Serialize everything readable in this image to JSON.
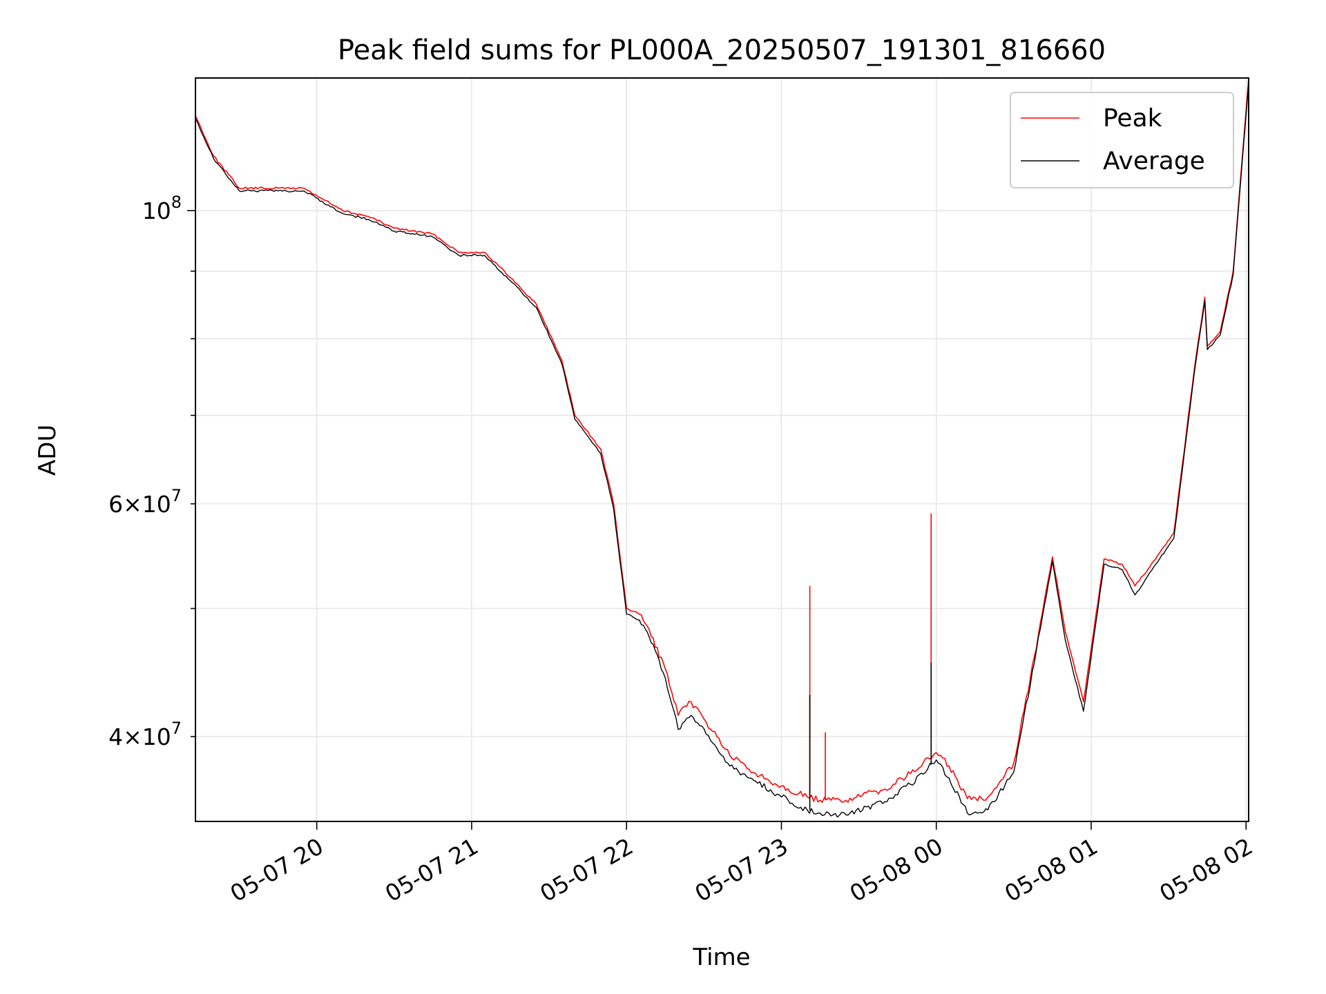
{
  "chart_data": {
    "type": "line",
    "title": "Peak field sums for PL000A_20250507_191301_816660",
    "xlabel": "Time",
    "ylabel": "ADU",
    "yscale": "log",
    "xlim": [
      "2025-05-07 19:13",
      "2025-05-08 02:01"
    ],
    "ylim": [
      34500000,
      126000000
    ],
    "grid": true,
    "legend_position": "top-right",
    "x_ticks": [
      "05-07 20",
      "05-07 21",
      "05-07 22",
      "05-07 23",
      "05-08 00",
      "05-08 01",
      "05-08 02"
    ],
    "y_major_ticks": [
      {
        "value": 100000000,
        "label": "10^8",
        "base": "10",
        "exp": "8"
      }
    ],
    "y_minor_ticks": [
      {
        "value": 40000000,
        "label": "4×10^7",
        "mantissa": "4",
        "base": "10",
        "exp": "7"
      },
      {
        "value": 60000000,
        "label": "6×10^7",
        "mantissa": "6",
        "base": "10",
        "exp": "7"
      }
    ],
    "y_unlabeled_ticks": [
      50000000,
      70000000,
      80000000,
      90000000
    ],
    "series": [
      {
        "name": "Peak",
        "color": "#ff0000",
        "x": [
          "2025-05-07 19:13",
          "2025-05-07 19:20",
          "2025-05-07 19:30",
          "2025-05-07 19:45",
          "2025-05-07 19:55",
          "2025-05-07 20:10",
          "2025-05-07 20:20",
          "2025-05-07 20:30",
          "2025-05-07 20:45",
          "2025-05-07 20:55",
          "2025-05-07 21:05",
          "2025-05-07 21:15",
          "2025-05-07 21:25",
          "2025-05-07 21:35",
          "2025-05-07 21:40",
          "2025-05-07 21:50",
          "2025-05-07 21:55",
          "2025-05-07 22:00",
          "2025-05-07 22:05",
          "2025-05-07 22:08",
          "2025-05-07 22:15",
          "2025-05-07 22:20",
          "2025-05-07 22:25",
          "2025-05-07 22:35",
          "2025-05-07 22:40",
          "2025-05-07 22:50",
          "2025-05-07 23:00",
          "2025-05-07 23:10",
          "2025-05-07 23:15",
          "2025-05-07 23:25",
          "2025-05-07 23:40",
          "2025-05-07 23:50",
          "2025-05-08 00:00",
          "2025-05-08 00:05",
          "2025-05-08 00:12",
          "2025-05-08 00:20",
          "2025-05-08 00:30",
          "2025-05-08 00:38",
          "2025-05-08 00:45",
          "2025-05-08 00:50",
          "2025-05-08 00:57",
          "2025-05-08 01:05",
          "2025-05-08 01:12",
          "2025-05-08 01:17",
          "2025-05-08 01:25",
          "2025-05-08 01:32",
          "2025-05-08 01:40",
          "2025-05-08 01:44",
          "2025-05-08 01:45",
          "2025-05-08 01:50",
          "2025-05-08 01:55",
          "2025-05-08 02:01"
        ],
        "values": [
          118000000,
          110000000,
          104000000,
          104000000,
          104000000,
          100000000,
          99000000,
          97000000,
          96000000,
          93000000,
          93000000,
          89000000,
          85000000,
          77000000,
          70000000,
          66000000,
          60000000,
          50000000,
          49500000,
          48500000,
          45000000,
          41500000,
          42500000,
          40000000,
          38700000,
          37500000,
          36700000,
          36000000,
          35800000,
          35800000,
          36500000,
          37500000,
          38900000,
          38000000,
          35900000,
          36000000,
          38200000,
          46000000,
          54700000,
          48000000,
          42500000,
          54500000,
          54000000,
          52000000,
          54500000,
          57000000,
          76000000,
          86000000,
          79000000,
          81000000,
          90000000,
          126000000
        ]
      },
      {
        "name": "Average",
        "color": "#000000",
        "x": [
          "2025-05-07 19:13",
          "2025-05-07 19:20",
          "2025-05-07 19:30",
          "2025-05-07 19:45",
          "2025-05-07 19:55",
          "2025-05-07 20:10",
          "2025-05-07 20:20",
          "2025-05-07 20:30",
          "2025-05-07 20:45",
          "2025-05-07 20:55",
          "2025-05-07 21:05",
          "2025-05-07 21:15",
          "2025-05-07 21:25",
          "2025-05-07 21:35",
          "2025-05-07 21:40",
          "2025-05-07 21:50",
          "2025-05-07 21:55",
          "2025-05-07 22:00",
          "2025-05-07 22:05",
          "2025-05-07 22:08",
          "2025-05-07 22:15",
          "2025-05-07 22:20",
          "2025-05-07 22:25",
          "2025-05-07 22:35",
          "2025-05-07 22:40",
          "2025-05-07 22:50",
          "2025-05-07 23:00",
          "2025-05-07 23:10",
          "2025-05-07 23:15",
          "2025-05-07 23:25",
          "2025-05-07 23:40",
          "2025-05-07 23:50",
          "2025-05-08 00:00",
          "2025-05-08 00:05",
          "2025-05-08 00:12",
          "2025-05-08 00:20",
          "2025-05-08 00:30",
          "2025-05-08 00:38",
          "2025-05-08 00:45",
          "2025-05-08 00:50",
          "2025-05-08 00:57",
          "2025-05-08 01:05",
          "2025-05-08 01:12",
          "2025-05-08 01:17",
          "2025-05-08 01:25",
          "2025-05-08 01:32",
          "2025-05-08 01:40",
          "2025-05-08 01:44",
          "2025-05-08 01:45",
          "2025-05-08 01:50",
          "2025-05-08 01:55",
          "2025-05-08 02:01"
        ],
        "values": [
          117500000,
          109500000,
          103500000,
          103500000,
          103500000,
          99500000,
          98500000,
          96500000,
          95500000,
          92500000,
          92500000,
          88500000,
          84500000,
          76500000,
          69500000,
          65500000,
          59500000,
          49500000,
          49000000,
          48000000,
          44300000,
          40500000,
          41500000,
          39200000,
          38000000,
          37000000,
          36000000,
          35200000,
          35000000,
          34900000,
          35700000,
          36800000,
          38400000,
          37200000,
          35000000,
          35200000,
          37600000,
          45500000,
          54300000,
          47300000,
          41800000,
          54000000,
          53500000,
          51200000,
          54000000,
          56500000,
          75500000,
          85500000,
          78500000,
          80500000,
          89500000,
          125000000
        ]
      }
    ],
    "spikes": [
      {
        "series": "Peak",
        "x": "2025-05-07 23:11",
        "value": 52000000
      },
      {
        "series": "Peak",
        "x": "2025-05-07 23:17",
        "value": 40300000
      },
      {
        "series": "Peak",
        "x": "2025-05-07 23:58",
        "value": 59000000
      },
      {
        "series": "Average",
        "x": "2025-05-07 23:11",
        "value": 43000000
      },
      {
        "series": "Average",
        "x": "2025-05-07 23:58",
        "value": 45500000
      }
    ]
  }
}
